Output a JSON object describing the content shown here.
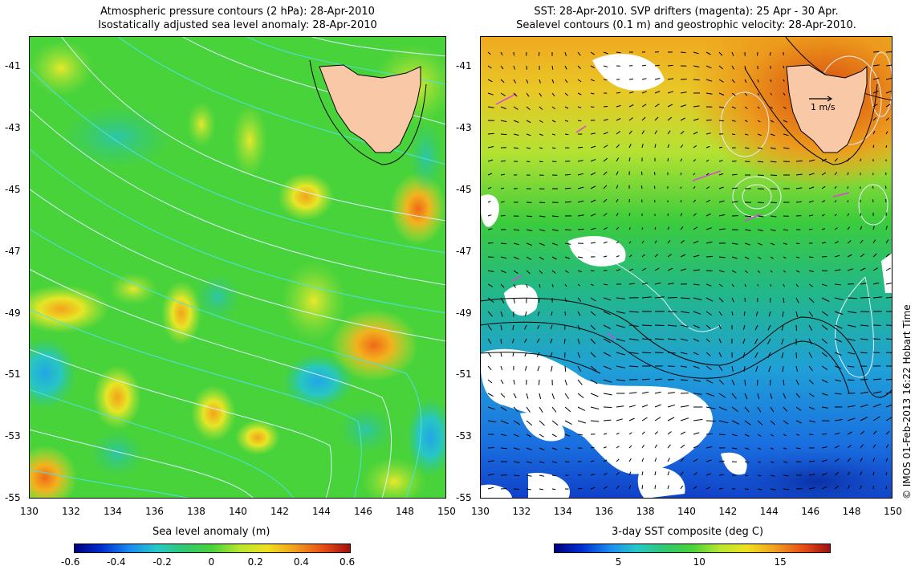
{
  "left_panel": {
    "title_line1": "Atmospheric pressure contours (2 hPa): 28-Apr-2010",
    "title_line2": "Isostatically adjusted sea level anomaly: 28-Apr-2010",
    "colorbar_label": "Sea level anomaly (m)",
    "colorbar_ticks": [
      "-0.6",
      "-0.4",
      "-0.2",
      "0",
      "0.2",
      "0.4",
      "0.6"
    ]
  },
  "right_panel": {
    "title_line1": "SST: 28-Apr-2010. SVP drifters (magenta): 25 Apr - 30 Apr.",
    "title_line2": "Sealevel contours (0.1 m) and geostrophic velocity: 28-Apr-2010.",
    "colorbar_label": "3-day SST composite (deg C)",
    "colorbar_ticks": [
      "5",
      "10",
      "15"
    ],
    "velocity_scale_label": "1 m/s"
  },
  "axes": {
    "lon_ticks": [
      "130",
      "132",
      "134",
      "136",
      "138",
      "140",
      "142",
      "144",
      "146",
      "148",
      "150"
    ],
    "lat_ticks": [
      "-41",
      "-43",
      "-45",
      "-47",
      "-49",
      "-51",
      "-53",
      "-55"
    ],
    "lon_range": [
      130,
      150
    ],
    "lat_range": [
      -55,
      -40
    ]
  },
  "credit": "© IMOS 01-Feb-2013 16:22 Hobart Time",
  "colors": {
    "land": "#f9c8a6",
    "left_background": "#49d33a",
    "contour_white": "#e8f4ff",
    "contour_cyan": "#4ee0e6",
    "drifter": "#e040e0"
  }
}
